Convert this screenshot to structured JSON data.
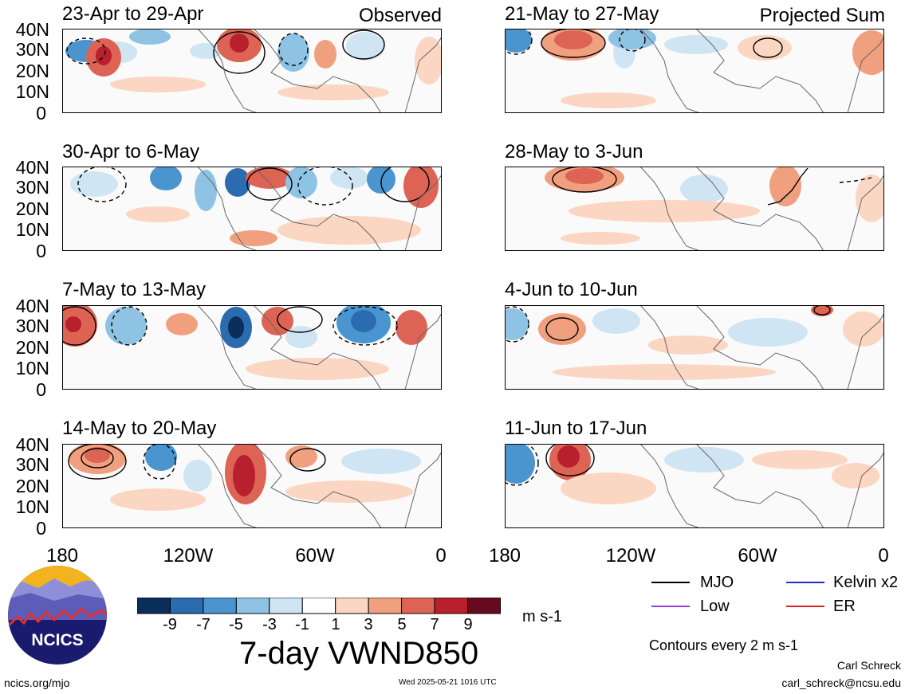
{
  "panels_left": [
    {
      "title": "23-Apr to 29-Apr",
      "corner": "Observed"
    },
    {
      "title": "30-Apr to 6-May",
      "corner": ""
    },
    {
      "title": "7-May to 13-May",
      "corner": ""
    },
    {
      "title": "14-May to 20-May",
      "corner": ""
    }
  ],
  "panels_right": [
    {
      "title": "21-May to 27-May",
      "corner": "Projected Sum"
    },
    {
      "title": "28-May to 3-Jun",
      "corner": ""
    },
    {
      "title": "4-Jun to 10-Jun",
      "corner": ""
    },
    {
      "title": "11-Jun to 17-Jun",
      "corner": ""
    }
  ],
  "lat_labels": [
    "40N",
    "30N",
    "20N",
    "10N",
    "0"
  ],
  "lon_labels": [
    "180",
    "120W",
    "60W",
    "0"
  ],
  "colorbar": {
    "colors": [
      "#0b2f5a",
      "#2b6cb0",
      "#4a95d0",
      "#8ec3e4",
      "#cfe5f3",
      "#ffffff",
      "#fbd6c2",
      "#f0a07f",
      "#dd6454",
      "#b8202e",
      "#680a1e"
    ],
    "ticks": [
      "-9",
      "-7",
      "-5",
      "-3",
      "-1",
      "1",
      "3",
      "5",
      "7",
      "9"
    ],
    "units": "m s-1"
  },
  "main_title": "7-day VWND850",
  "legend": {
    "mjo": {
      "label": "MJO",
      "color": "#000000"
    },
    "kelvin": {
      "label": "Kelvin x2",
      "color": "#1f2fc8"
    },
    "low": {
      "label": "Low",
      "color": "#9b3ee0"
    },
    "er": {
      "label": "ER",
      "color": "#d2261e"
    }
  },
  "contours_note": "Contours every 2 m s-1",
  "author": "Carl Schreck",
  "email": "carl_schreck@ncsu.edu",
  "url": "ncics.org/mjo",
  "timestamp": "Wed 2025-05-21 1016 UTC",
  "logo_text": "NCICS"
}
